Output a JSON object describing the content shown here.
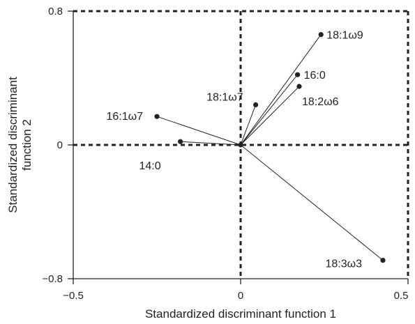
{
  "chart_data": {
    "type": "scatter",
    "title": "",
    "xlabel": "Standardized discriminant function 1",
    "ylabel": [
      "Standardized discriminant",
      "function 2"
    ],
    "xlim": [
      -0.5,
      0.5
    ],
    "ylim": [
      -0.8,
      0.8
    ],
    "xticks": [
      "−0.5",
      "0",
      "0.5"
    ],
    "yticks": [
      "0.8",
      "0",
      "−0.8"
    ],
    "origin": [
      0,
      0
    ],
    "style": "vectors from origin with point markers; dashed reference lines at x=0, y=0 and along top/right edges",
    "points": [
      {
        "label": "18:1ω9",
        "x": 0.24,
        "y": 0.66
      },
      {
        "label": "16:0",
        "x": 0.17,
        "y": 0.42
      },
      {
        "label": "18:2ω6",
        "x": 0.175,
        "y": 0.35
      },
      {
        "label": "18:1ω7",
        "x": 0.045,
        "y": 0.24
      },
      {
        "label": "16:1ω7",
        "x": -0.25,
        "y": 0.17
      },
      {
        "label": "14:0",
        "x": -0.18,
        "y": 0.02
      },
      {
        "label": "18:3ω3",
        "x": 0.425,
        "y": -0.69
      }
    ]
  }
}
